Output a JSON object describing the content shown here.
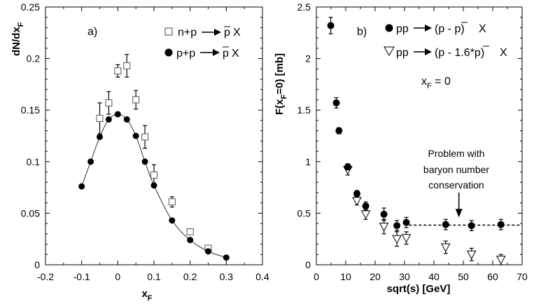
{
  "chart_data": [
    {
      "type": "scatter",
      "panel_label": "a)",
      "xlabel": "x",
      "xlabel_sub": "F",
      "ylabel": "dN/dx",
      "ylabel_sub": "F",
      "xlim": [
        -0.2,
        0.4
      ],
      "ylim": [
        0,
        0.25
      ],
      "xticks": [
        "-0.2",
        "-0.1",
        "0",
        "0.1",
        "0.2",
        "0.3",
        "0.4"
      ],
      "yticks": [
        "0",
        "0.05",
        "0.1",
        "0.15",
        "0.2",
        "0.25"
      ],
      "series": [
        {
          "name": "n+p → p̄ X",
          "legend_prefix": "n+p",
          "legend_suffix": "X",
          "legend_particle": "p",
          "marker": "open-square",
          "points": [
            {
              "x": -0.05,
              "y": 0.142,
              "err": 0.015
            },
            {
              "x": -0.025,
              "y": 0.157,
              "err": 0.011
            },
            {
              "x": 0.0,
              "y": 0.188,
              "err": 0.006
            },
            {
              "x": 0.025,
              "y": 0.193,
              "err": 0.011
            },
            {
              "x": 0.05,
              "y": 0.16,
              "err": 0.009
            },
            {
              "x": 0.075,
              "y": 0.124,
              "err": 0.011
            },
            {
              "x": 0.1,
              "y": 0.087,
              "err": 0.01
            },
            {
              "x": 0.15,
              "y": 0.061,
              "err": 0.005
            },
            {
              "x": 0.2,
              "y": 0.032,
              "err": 0.003
            },
            {
              "x": 0.25,
              "y": 0.016,
              "err": 0.003
            }
          ]
        },
        {
          "name": "p+p → p̄ X",
          "legend_prefix": "p+p",
          "legend_suffix": "X",
          "legend_particle": "p",
          "marker": "filled-circle",
          "points": [
            {
              "x": -0.1,
              "y": 0.076
            },
            {
              "x": -0.075,
              "y": 0.1
            },
            {
              "x": -0.05,
              "y": 0.124
            },
            {
              "x": -0.025,
              "y": 0.141
            },
            {
              "x": 0.0,
              "y": 0.146
            },
            {
              "x": 0.025,
              "y": 0.141
            },
            {
              "x": 0.05,
              "y": 0.125
            },
            {
              "x": 0.075,
              "y": 0.1
            },
            {
              "x": 0.1,
              "y": 0.077
            },
            {
              "x": 0.15,
              "y": 0.043
            },
            {
              "x": 0.2,
              "y": 0.024
            },
            {
              "x": 0.25,
              "y": 0.013
            },
            {
              "x": 0.3,
              "y": 0.007
            }
          ]
        }
      ],
      "fit_curve": {
        "name": "fit to p+p",
        "points": [
          {
            "x": -0.1,
            "y": 0.076
          },
          {
            "x": -0.075,
            "y": 0.1
          },
          {
            "x": -0.05,
            "y": 0.124
          },
          {
            "x": -0.025,
            "y": 0.141
          },
          {
            "x": 0.0,
            "y": 0.146
          },
          {
            "x": 0.025,
            "y": 0.141
          },
          {
            "x": 0.05,
            "y": 0.125
          },
          {
            "x": 0.075,
            "y": 0.1
          },
          {
            "x": 0.1,
            "y": 0.077
          },
          {
            "x": 0.15,
            "y": 0.043
          },
          {
            "x": 0.2,
            "y": 0.024
          },
          {
            "x": 0.25,
            "y": 0.013
          },
          {
            "x": 0.3,
            "y": 0.007
          }
        ]
      }
    },
    {
      "type": "scatter",
      "panel_label": "b)",
      "xlabel": "sqrt(s)  [GeV]",
      "ylabel": "F(x",
      "ylabel_sub": "F",
      "ylabel_tail": "=0)  [mb]",
      "xlim": [
        0,
        70
      ],
      "ylim": [
        0,
        2.5
      ],
      "xticks": [
        "0",
        "10",
        "20",
        "30",
        "40",
        "50",
        "60",
        "70"
      ],
      "yticks": [
        "0",
        "0.5",
        "1",
        "1.5",
        "2",
        "2.5"
      ],
      "annotation": {
        "condition_main": "x",
        "condition_sub": "F",
        "condition_tail": " = 0",
        "note_lines": [
          "Problem with",
          "baryon number",
          "conservation"
        ],
        "note_arrow_x": 48.5,
        "note_arrow_y_from": 0.7,
        "note_arrow_y_to": 0.46
      },
      "series": [
        {
          "name": "pp → (p - p̄) X",
          "legend_prefix": "pp",
          "legend_paren": "(p - p)",
          "legend_particle": "p",
          "legend_suffix": "X",
          "marker": "filled-circle",
          "points": [
            {
              "x": 4.9,
              "y": 2.32,
              "err": 0.08
            },
            {
              "x": 6.8,
              "y": 1.57,
              "err": 0.05
            },
            {
              "x": 7.7,
              "y": 1.3,
              "err": 0.03
            },
            {
              "x": 10.7,
              "y": 0.95,
              "err": 0.03
            },
            {
              "x": 13.8,
              "y": 0.69,
              "err": 0.03
            },
            {
              "x": 16.8,
              "y": 0.57,
              "err": 0.04
            },
            {
              "x": 23.0,
              "y": 0.49,
              "err": 0.06
            },
            {
              "x": 27.4,
              "y": 0.38,
              "err": 0.05
            },
            {
              "x": 30.6,
              "y": 0.41,
              "err": 0.05
            },
            {
              "x": 44.0,
              "y": 0.39,
              "err": 0.05
            },
            {
              "x": 52.8,
              "y": 0.38,
              "err": 0.05
            },
            {
              "x": 62.8,
              "y": 0.39,
              "err": 0.05
            }
          ]
        },
        {
          "name": "pp → (p - 1.6*p̄) X",
          "legend_prefix": "pp",
          "legend_paren": "(p - 1.6*p)",
          "legend_particle": "p",
          "legend_suffix": "X",
          "marker": "open-triangle-down",
          "points": [
            {
              "x": 10.7,
              "y": 0.92,
              "err": 0.05
            },
            {
              "x": 13.8,
              "y": 0.62,
              "err": 0.04
            },
            {
              "x": 16.8,
              "y": 0.49,
              "err": 0.05
            },
            {
              "x": 23.0,
              "y": 0.37,
              "err": 0.07
            },
            {
              "x": 27.4,
              "y": 0.25,
              "err": 0.07
            },
            {
              "x": 30.6,
              "y": 0.26,
              "err": 0.06
            },
            {
              "x": 44.0,
              "y": 0.17,
              "err": 0.06
            },
            {
              "x": 52.8,
              "y": 0.1,
              "err": 0.06
            },
            {
              "x": 62.8,
              "y": 0.05,
              "err": 0.05
            }
          ]
        }
      ],
      "reference_line": {
        "style": "dashed",
        "y": 0.385,
        "x_from": 31.5,
        "x_to": 69.5
      }
    }
  ]
}
